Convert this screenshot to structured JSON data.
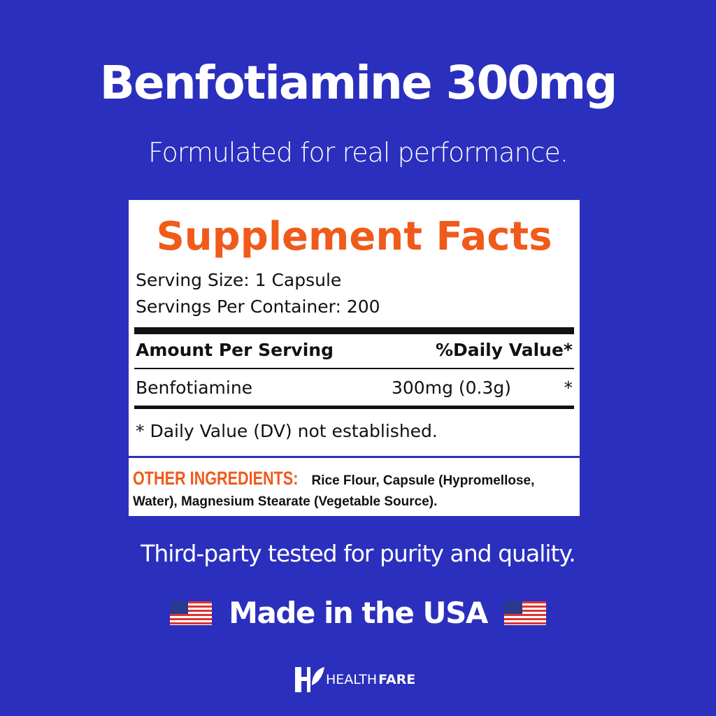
{
  "title": "Benfotiamine 300mg",
  "subtitle": "Formulated for real performance.",
  "facts": {
    "heading": "Supplement Facts",
    "serving_size": "Serving Size: 1 Capsule",
    "servings_per_container": "Servings Per Container: 200",
    "col_amount": "Amount Per Serving",
    "col_dv": "%Daily Value*",
    "row": {
      "name": "Benfotiamine",
      "amount": "300mg (0.3g)",
      "dv": "*"
    },
    "footnote": "* Daily Value (DV) not established.",
    "other_label": "OTHER INGREDIENTS:",
    "other_text": "Rice Flour, Capsule (Hypromellose, Water), Magnesium Stearate (Vegetable Source)."
  },
  "tagline": "Third-party tested for purity and quality.",
  "made_in": "Made in the USA",
  "brand": {
    "light": "HEALTH",
    "bold": "FARE"
  },
  "colors": {
    "background": "#2b2fbd",
    "accent": "#f05a1a"
  }
}
